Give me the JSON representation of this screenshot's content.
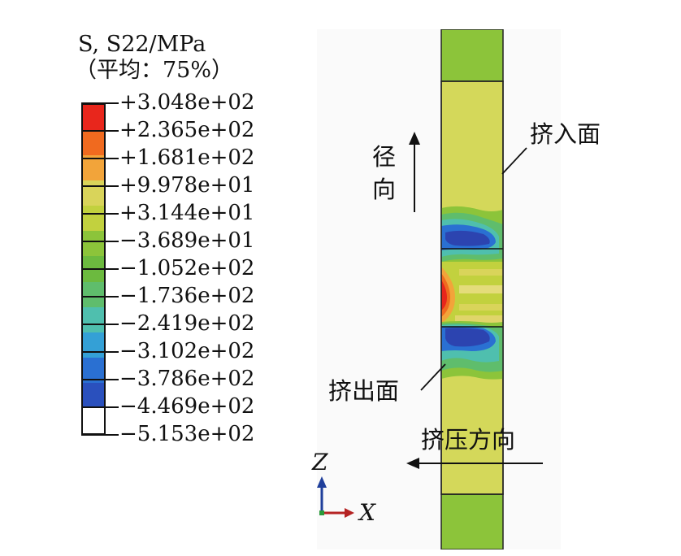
{
  "legend": {
    "title_prefix": "S, S22/MPa",
    "subtitle": "（平均：75%）",
    "values": [
      "+3.048e+02",
      "+2.365e+02",
      "+1.681e+02",
      "+9.978e+01",
      "+3.144e+01",
      "−3.689e+01",
      "−1.052e+02",
      "−1.736e+02",
      "−2.419e+02",
      "−3.102e+02",
      "−3.786e+02",
      "−4.469e+02",
      "−5.153e+02"
    ],
    "colors": [
      "#e8261c",
      "#f06a1f",
      "#f2a43a",
      "#d9d45a",
      "#c2d13e",
      "#8cc43a",
      "#6cba3f",
      "#5fbd6c",
      "#4fbfae",
      "#34a0d6",
      "#2a70d2",
      "#2a50bd",
      "#2c44b0"
    ]
  },
  "annotations": {
    "radial_line1": "径",
    "radial_line2": "向",
    "entry_face": "挤入面",
    "exit_face": "挤出面",
    "extrusion_direction": "挤压方向",
    "axis_z": "Z",
    "axis_x": "X"
  }
}
